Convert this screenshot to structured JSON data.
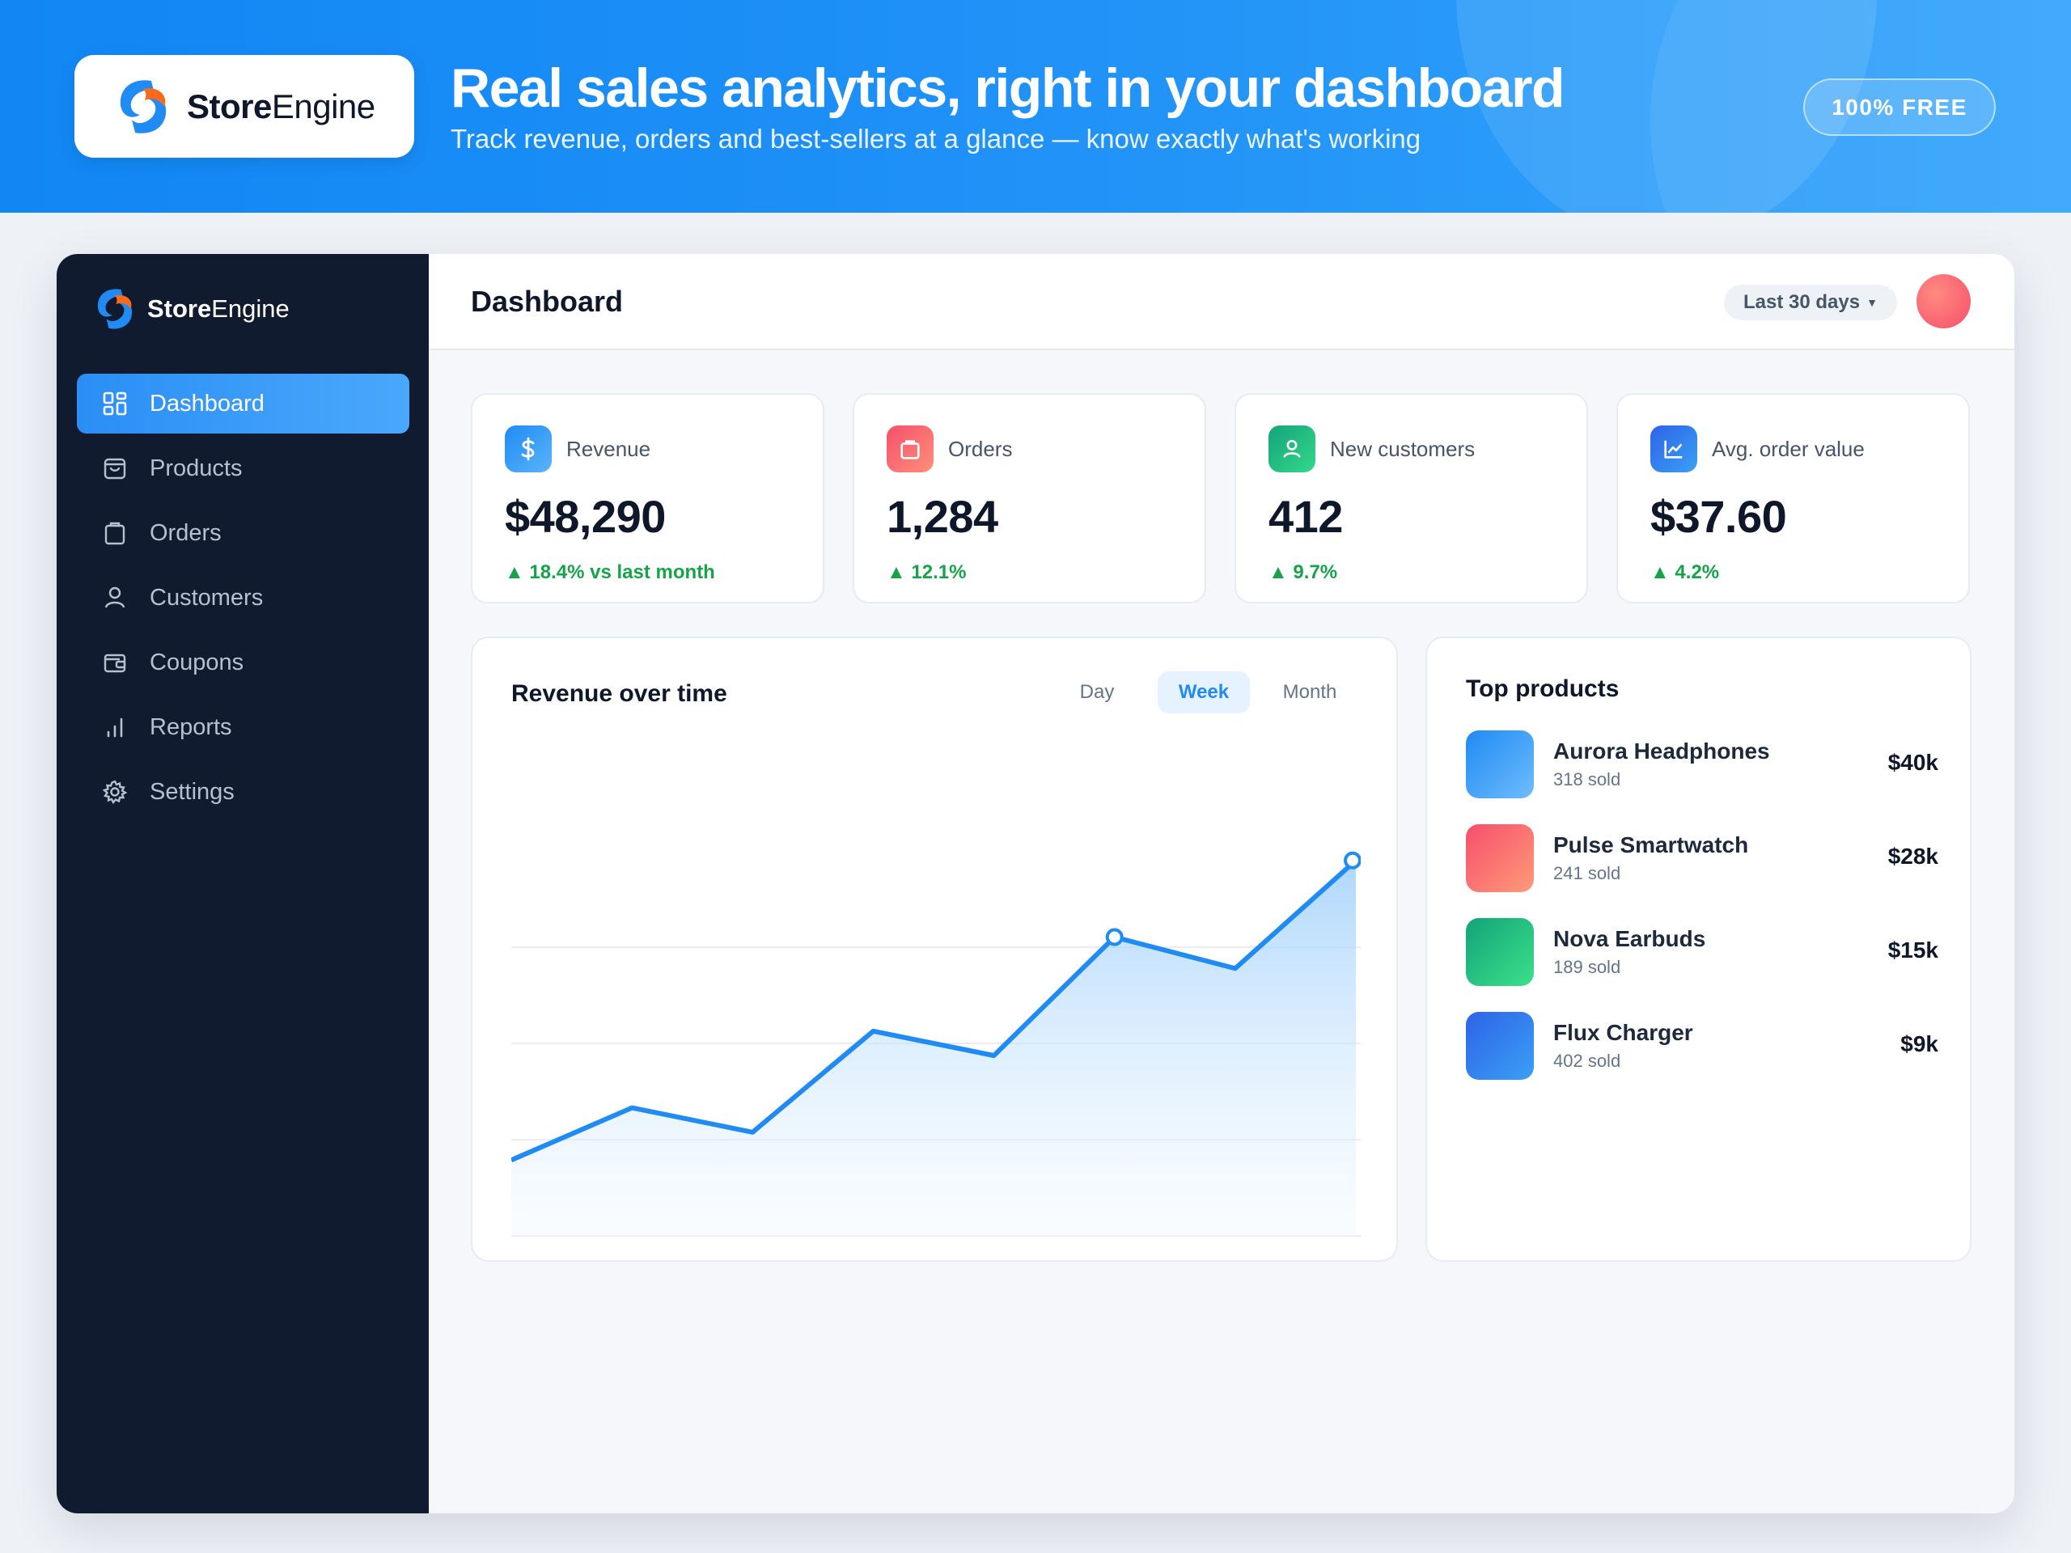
{
  "banner": {
    "logo_word_bold": "Store",
    "logo_word_light": "Engine",
    "title": "Real sales analytics, right in your dashboard",
    "subtitle": "Track revenue, orders and best-sellers at a glance — know exactly what's working",
    "badge": "100% FREE"
  },
  "sidebar": {
    "brand_bold": "Store",
    "brand_light": "Engine",
    "items": [
      {
        "label": "Dashboard",
        "icon": "grid-icon",
        "active": true
      },
      {
        "label": "Products",
        "icon": "bag-icon"
      },
      {
        "label": "Orders",
        "icon": "clipboard-icon"
      },
      {
        "label": "Customers",
        "icon": "user-icon"
      },
      {
        "label": "Coupons",
        "icon": "wallet-icon"
      },
      {
        "label": "Reports",
        "icon": "bar-chart-icon"
      },
      {
        "label": "Settings",
        "icon": "gear-icon"
      }
    ]
  },
  "header": {
    "title": "Dashboard",
    "range": "Last 30 days"
  },
  "stats": [
    {
      "label": "Revenue",
      "value": "$48,290",
      "delta": "18.4% vs last month",
      "icon": "dollar-icon",
      "color": "#2a8ef5"
    },
    {
      "label": "Orders",
      "value": "1,284",
      "delta": "12.1%",
      "icon": "bag-icon",
      "color": "#f5506b"
    },
    {
      "label": "New customers",
      "value": "412",
      "delta": "9.7%",
      "icon": "user-icon",
      "color": "#22c17a"
    },
    {
      "label": "Avg. order value",
      "value": "$37.60",
      "delta": "4.2%",
      "icon": "trend-icon",
      "color": "#2e6ff0"
    }
  ],
  "revenue_chart": {
    "title": "Revenue over time",
    "tabs": [
      "Day",
      "Week",
      "Month"
    ],
    "active_tab": "Week",
    "line_color": "#1f8bf3"
  },
  "chart_data": {
    "type": "area",
    "title": "Revenue over time",
    "x": [
      1,
      2,
      3,
      4,
      5,
      6,
      7,
      8
    ],
    "series": [
      {
        "values": [
          22,
          37,
          30,
          59,
          52,
          86,
          77,
          108
        ]
      }
    ],
    "highlighted_points": [
      6,
      8
    ],
    "ylim": [
      0,
      130
    ],
    "grid": "horizontal"
  },
  "top_products": {
    "title": "Top products",
    "items": [
      {
        "name": "Aurora Headphones",
        "sold": "318 sold",
        "revenue": "$40k",
        "color_from": "#1f8bf3",
        "color_to": "#6fbcfd"
      },
      {
        "name": "Pulse Smartwatch",
        "sold": "241 sold",
        "revenue": "$28k",
        "color_from": "#f5506b",
        "color_to": "#ff9a7a"
      },
      {
        "name": "Nova Earbuds",
        "sold": "189 sold",
        "revenue": "$15k",
        "color_from": "#14a37a",
        "color_to": "#3ae089"
      },
      {
        "name": "Flux Charger",
        "sold": "402 sold",
        "revenue": "$9k",
        "color_from": "#2e63e8",
        "color_to": "#3aa0f5"
      }
    ]
  }
}
